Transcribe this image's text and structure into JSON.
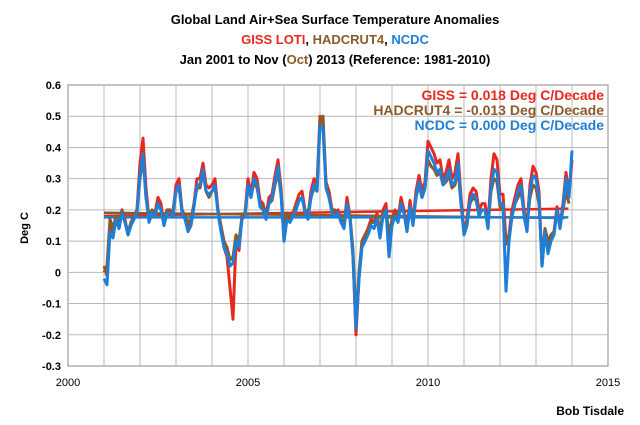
{
  "chart_data": {
    "type": "line",
    "title": {
      "line1": "Global Land Air+Sea Surface Temperature Anomalies",
      "line2_parts": [
        {
          "text": "GISS LOTI",
          "color": "#e8281e"
        },
        {
          "text": ", ",
          "color": "#000000"
        },
        {
          "text": "HADCRUT4",
          "color": "#8b5a2b"
        },
        {
          "text": ",  ",
          "color": "#000000"
        },
        {
          "text": "NCDC",
          "color": "#1f7fd6"
        }
      ],
      "line3_parts": [
        {
          "text": "Jan 2001 to Nov (",
          "color": "#000000"
        },
        {
          "text": "Oct",
          "color": "#8b5a2b"
        },
        {
          "text": ") 2013 (Reference: 1981-2010)",
          "color": "#000000"
        }
      ]
    },
    "ylabel": "Deg C",
    "xlabel": "",
    "xlim": [
      2000,
      2015
    ],
    "ylim": [
      -0.3,
      0.6
    ],
    "xticks": [
      2000,
      2005,
      2010,
      2015
    ],
    "yticks": [
      -0.3,
      -0.2,
      -0.1,
      0,
      0.1,
      0.2,
      0.3,
      0.4,
      0.5,
      0.6
    ],
    "ytick_labels": [
      "-0.3",
      "-0.2",
      "-0.1",
      "0",
      "0.1",
      "0.2",
      "0.3",
      "0.4",
      "0.5",
      "0.6"
    ],
    "grid": true,
    "annotations": [
      {
        "text": "GISS = 0.018 Deg C/Decade",
        "color": "#e8281e"
      },
      {
        "text": "HADCRUT4 = -0.013 Deg C/Decade",
        "color": "#8b5a2b"
      },
      {
        "text": "NCDC = 0.000 Deg C/Decade",
        "color": "#1f7fd6"
      }
    ],
    "series": [
      {
        "name": "GISS LOTI",
        "color": "#e8281e",
        "start": 2001.0,
        "values": [
          0.02,
          -0.01,
          0.15,
          0.12,
          0.18,
          0.14,
          0.2,
          0.17,
          0.12,
          0.16,
          0.18,
          0.2,
          0.35,
          0.43,
          0.27,
          0.17,
          0.2,
          0.19,
          0.24,
          0.22,
          0.15,
          0.2,
          0.2,
          0.19,
          0.28,
          0.3,
          0.2,
          0.18,
          0.14,
          0.16,
          0.22,
          0.3,
          0.3,
          0.35,
          0.28,
          0.27,
          0.28,
          0.3,
          0.2,
          0.14,
          0.08,
          0.05,
          -0.05,
          -0.15,
          0.1,
          0.07,
          0.18,
          0.19,
          0.3,
          0.25,
          0.32,
          0.3,
          0.23,
          0.22,
          0.18,
          0.24,
          0.25,
          0.31,
          0.36,
          0.27,
          0.1,
          0.18,
          0.17,
          0.19,
          0.22,
          0.25,
          0.26,
          0.2,
          0.18,
          0.26,
          0.3,
          0.28,
          0.5,
          0.48,
          0.29,
          0.26,
          0.2,
          0.19,
          0.2,
          0.17,
          0.15,
          0.24,
          0.18,
          0.05,
          -0.2,
          -0.02,
          0.1,
          0.12,
          0.14,
          0.17,
          0.16,
          0.19,
          0.12,
          0.2,
          0.22,
          0.08,
          0.17,
          0.2,
          0.17,
          0.24,
          0.2,
          0.14,
          0.23,
          0.16,
          0.26,
          0.31,
          0.26,
          0.29,
          0.42,
          0.4,
          0.38,
          0.35,
          0.36,
          0.3,
          0.32,
          0.36,
          0.3,
          0.32,
          0.38,
          0.24,
          0.13,
          0.17,
          0.25,
          0.27,
          0.26,
          0.2,
          0.22,
          0.22,
          0.16,
          0.3,
          0.38,
          0.36,
          0.25,
          0.25,
          0.1,
          0.12,
          0.2,
          0.24,
          0.28,
          0.3,
          0.2,
          0.15,
          0.28,
          0.34,
          0.32,
          0.26,
          0.02,
          0.14,
          0.08,
          0.12,
          0.13,
          0.21,
          0.15,
          0.22,
          0.32,
          0.25,
          0.36
        ]
      },
      {
        "name": "HADCRUT4",
        "color": "#8b5a2b",
        "start": 2001.0,
        "values": [
          0.0,
          0.02,
          0.17,
          0.14,
          0.18,
          0.15,
          0.2,
          0.16,
          0.13,
          0.16,
          0.18,
          0.2,
          0.3,
          0.37,
          0.24,
          0.18,
          0.2,
          0.19,
          0.22,
          0.2,
          0.16,
          0.2,
          0.19,
          0.2,
          0.26,
          0.27,
          0.2,
          0.18,
          0.16,
          0.17,
          0.22,
          0.27,
          0.27,
          0.32,
          0.26,
          0.24,
          0.26,
          0.27,
          0.2,
          0.15,
          0.1,
          0.08,
          0.04,
          0.05,
          0.12,
          0.1,
          0.18,
          0.19,
          0.27,
          0.24,
          0.29,
          0.27,
          0.22,
          0.21,
          0.19,
          0.22,
          0.23,
          0.28,
          0.32,
          0.25,
          0.14,
          0.19,
          0.18,
          0.19,
          0.21,
          0.23,
          0.24,
          0.2,
          0.19,
          0.24,
          0.27,
          0.26,
          0.49,
          0.5,
          0.28,
          0.24,
          0.2,
          0.2,
          0.19,
          0.17,
          0.16,
          0.22,
          0.18,
          0.07,
          -0.16,
          0.0,
          0.1,
          0.12,
          0.13,
          0.16,
          0.16,
          0.18,
          0.13,
          0.19,
          0.2,
          0.12,
          0.17,
          0.19,
          0.17,
          0.22,
          0.19,
          0.15,
          0.21,
          0.17,
          0.24,
          0.28,
          0.24,
          0.27,
          0.36,
          0.34,
          0.33,
          0.31,
          0.32,
          0.28,
          0.29,
          0.31,
          0.27,
          0.28,
          0.33,
          0.22,
          0.13,
          0.16,
          0.22,
          0.24,
          0.23,
          0.19,
          0.2,
          0.2,
          0.15,
          0.26,
          0.3,
          0.29,
          0.21,
          0.2,
          0.09,
          0.11,
          0.18,
          0.22,
          0.24,
          0.26,
          0.19,
          0.15,
          0.24,
          0.28,
          0.27,
          0.22,
          0.04,
          0.14,
          0.1,
          0.12,
          0.13,
          0.19,
          0.15,
          0.2,
          0.26,
          0.22
        ]
      },
      {
        "name": "NCDC",
        "color": "#1f7fd6",
        "start": 2001.0,
        "values": [
          -0.02,
          -0.04,
          0.13,
          0.11,
          0.17,
          0.14,
          0.19,
          0.16,
          0.12,
          0.15,
          0.17,
          0.19,
          0.31,
          0.38,
          0.24,
          0.16,
          0.19,
          0.18,
          0.22,
          0.2,
          0.15,
          0.19,
          0.19,
          0.18,
          0.26,
          0.28,
          0.19,
          0.17,
          0.13,
          0.15,
          0.21,
          0.28,
          0.28,
          0.33,
          0.26,
          0.25,
          0.26,
          0.28,
          0.19,
          0.13,
          0.08,
          0.06,
          0.02,
          0.03,
          0.1,
          0.08,
          0.17,
          0.18,
          0.28,
          0.24,
          0.3,
          0.28,
          0.21,
          0.2,
          0.17,
          0.22,
          0.24,
          0.29,
          0.34,
          0.25,
          0.1,
          0.17,
          0.16,
          0.18,
          0.2,
          0.23,
          0.24,
          0.19,
          0.17,
          0.24,
          0.28,
          0.26,
          0.47,
          0.46,
          0.27,
          0.24,
          0.19,
          0.18,
          0.19,
          0.16,
          0.14,
          0.22,
          0.17,
          0.05,
          -0.18,
          -0.02,
          0.08,
          0.1,
          0.12,
          0.15,
          0.14,
          0.17,
          0.11,
          0.18,
          0.2,
          0.05,
          0.15,
          0.18,
          0.16,
          0.22,
          0.19,
          0.13,
          0.21,
          0.15,
          0.24,
          0.29,
          0.24,
          0.27,
          0.39,
          0.37,
          0.35,
          0.32,
          0.33,
          0.28,
          0.3,
          0.33,
          0.28,
          0.29,
          0.35,
          0.22,
          0.12,
          0.15,
          0.23,
          0.25,
          0.24,
          0.18,
          0.2,
          0.2,
          0.14,
          0.27,
          0.33,
          0.32,
          0.22,
          0.22,
          -0.06,
          0.1,
          0.18,
          0.22,
          0.26,
          0.28,
          0.18,
          0.13,
          0.26,
          0.31,
          0.3,
          0.24,
          0.02,
          0.13,
          0.06,
          0.1,
          0.12,
          0.2,
          0.14,
          0.21,
          0.3,
          0.24,
          0.39
        ]
      }
    ],
    "trendlines": [
      {
        "name": "GISS",
        "color": "#e8281e",
        "x": [
          2001.0,
          2013.9
        ],
        "y": [
          0.181,
          0.204
        ]
      },
      {
        "name": "HADCRUT4",
        "color": "#8b5a2b",
        "x": [
          2001.0,
          2013.8
        ],
        "y": [
          0.191,
          0.174
        ]
      },
      {
        "name": "NCDC",
        "color": "#1f7fd6",
        "x": [
          2001.0,
          2013.9
        ],
        "y": [
          0.176,
          0.176
        ]
      }
    ],
    "credit": "Bob Tisdale"
  }
}
